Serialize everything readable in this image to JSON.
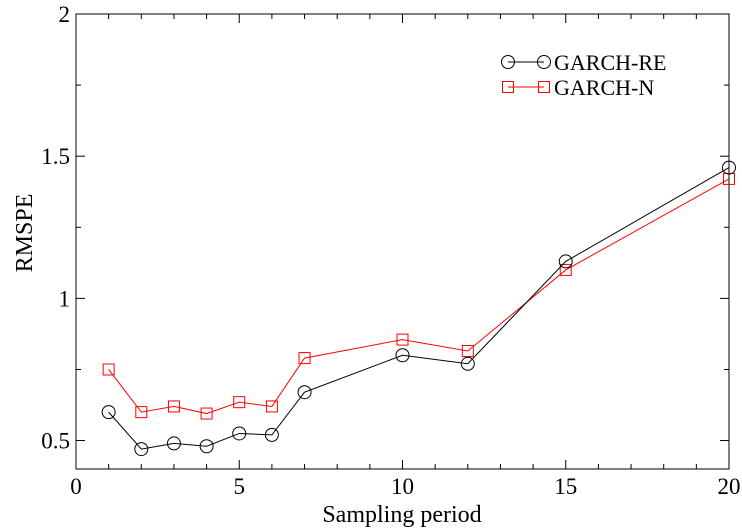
{
  "chart_data": {
    "type": "line",
    "title": "",
    "xlabel": "Sampling period",
    "ylabel": "RMSPE",
    "xlim": [
      0,
      20
    ],
    "ylim": [
      0.4,
      2
    ],
    "xticks": [
      0,
      5,
      10,
      15,
      20
    ],
    "yticks": [
      0.5,
      1,
      1.5,
      2
    ],
    "grid": false,
    "legend_position": "top-right",
    "x": [
      1,
      2,
      3,
      4,
      5,
      6,
      7,
      10,
      12,
      15,
      20
    ],
    "series": [
      {
        "name": "GARCH-RE",
        "color": "#000000",
        "marker": "circle",
        "values": [
          0.6,
          0.47,
          0.49,
          0.48,
          0.525,
          0.52,
          0.67,
          0.8,
          0.77,
          1.13,
          1.46
        ]
      },
      {
        "name": "GARCH-N",
        "color": "#ff0000",
        "marker": "square",
        "values": [
          0.75,
          0.6,
          0.62,
          0.595,
          0.635,
          0.62,
          0.79,
          0.855,
          0.815,
          1.1,
          1.42
        ]
      }
    ]
  }
}
